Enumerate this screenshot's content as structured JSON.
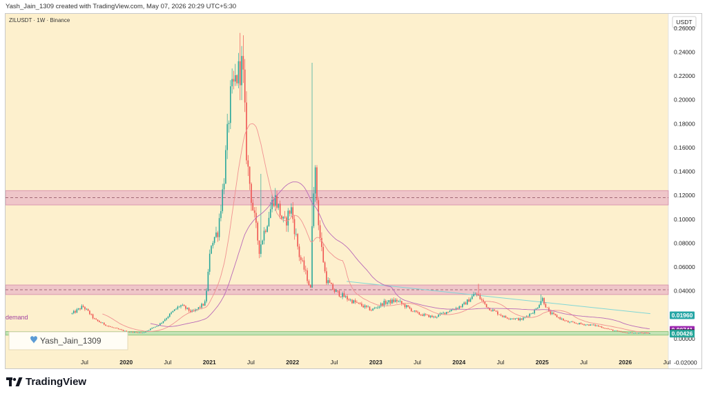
{
  "header": {
    "author_line": "Yash_Jain_1309 created with TradingView.com, May 07, 2026 20:29 UTC+5:30"
  },
  "chart": {
    "symbol_line": "ZILUSDT · 1W · Binance",
    "currency_badge": "USDT",
    "watermark": "Yash_Jain_1309",
    "watermark_icon": "heart-icon",
    "zone_label": "demand",
    "colors": {
      "background": "#fdf0cd",
      "up": "#26a69a",
      "down": "#ef5350",
      "resistance_zone": "#e8b3c8",
      "demand_zone": "#b9e0b0",
      "ma_fast": "#f09090",
      "ma_slow": "#b868b8",
      "trendline": "#7fd6d6"
    }
  },
  "branding": {
    "logo_text": "TradingView",
    "logo_icon": "tradingview-logo-icon"
  },
  "chart_data": {
    "type": "candlestick",
    "title": "ZILUSDT · 1W · Binance",
    "xlabel": "",
    "ylabel": "",
    "y_unit": "USDT",
    "ylim": [
      -0.026,
      0.272
    ],
    "xlim": [
      2018.55,
      2026.45
    ],
    "y_ticks": [
      0.26,
      0.24,
      0.22,
      0.2,
      0.18,
      0.16,
      0.14,
      0.12,
      0.1,
      0.08,
      0.06,
      0.04,
      0.0,
      -0.02
    ],
    "y_tick_labels": [
      "0.26000",
      "0.24000",
      "0.22000",
      "0.20000",
      "0.18000",
      "0.16000",
      "0.14000",
      "0.12000",
      "0.10000",
      "0.08000",
      "0.06000",
      "0.04000",
      "0.00000",
      "-0.02000"
    ],
    "x_ticks": [
      {
        "label": "Jul",
        "t": 2019.5,
        "bold": false
      },
      {
        "label": "2020",
        "t": 2020.0,
        "bold": true
      },
      {
        "label": "Jul",
        "t": 2020.5,
        "bold": false
      },
      {
        "label": "2021",
        "t": 2021.0,
        "bold": true
      },
      {
        "label": "Jul",
        "t": 2021.5,
        "bold": false
      },
      {
        "label": "2022",
        "t": 2022.0,
        "bold": true
      },
      {
        "label": "Jul",
        "t": 2022.5,
        "bold": false
      },
      {
        "label": "2023",
        "t": 2023.0,
        "bold": true
      },
      {
        "label": "Jul",
        "t": 2023.5,
        "bold": false
      },
      {
        "label": "2024",
        "t": 2024.0,
        "bold": true
      },
      {
        "label": "Jul",
        "t": 2024.5,
        "bold": false
      },
      {
        "label": "2025",
        "t": 2025.0,
        "bold": true
      },
      {
        "label": "Jul",
        "t": 2025.5,
        "bold": false
      },
      {
        "label": "2026",
        "t": 2026.0,
        "bold": true
      },
      {
        "label": "Jul",
        "t": 2026.5,
        "bold": false
      }
    ],
    "zones": [
      {
        "name": "resistance-upper",
        "low": 0.112,
        "high": 0.124,
        "mid": 0.118
      },
      {
        "name": "resistance-lower",
        "low": 0.037,
        "high": 0.045,
        "mid": 0.041
      },
      {
        "name": "demand",
        "low": 0.003,
        "high": 0.006
      }
    ],
    "price_tags": [
      {
        "value": "0.01960",
        "y": 0.0196,
        "color": "#26a6a6"
      },
      {
        "value": "0.00741",
        "y": 0.00741,
        "color": "#9c27b0"
      },
      {
        "value": "0.00468",
        "y": 0.00468,
        "color": "#222222"
      },
      {
        "value": "0.00426",
        "y": 0.00426,
        "color": "#26a69a"
      }
    ],
    "trendline": {
      "t1": 2022.65,
      "y1": 0.048,
      "t2": 2026.3,
      "y2": 0.021
    },
    "anchors": [
      [
        2019.35,
        0.021
      ],
      [
        2019.48,
        0.027
      ],
      [
        2019.55,
        0.022
      ],
      [
        2019.62,
        0.016
      ],
      [
        2019.8,
        0.01
      ],
      [
        2020.0,
        0.006
      ],
      [
        2020.2,
        0.005
      ],
      [
        2020.4,
        0.012
      ],
      [
        2020.55,
        0.022
      ],
      [
        2020.65,
        0.028
      ],
      [
        2020.8,
        0.022
      ],
      [
        2020.95,
        0.03
      ],
      [
        2021.02,
        0.08
      ],
      [
        2021.1,
        0.09
      ],
      [
        2021.17,
        0.13
      ],
      [
        2021.25,
        0.2
      ],
      [
        2021.33,
        0.22
      ],
      [
        2021.4,
        0.23
      ],
      [
        2021.45,
        0.15
      ],
      [
        2021.52,
        0.11
      ],
      [
        2021.6,
        0.075
      ],
      [
        2021.7,
        0.1
      ],
      [
        2021.78,
        0.12
      ],
      [
        2021.9,
        0.095
      ],
      [
        2021.98,
        0.11
      ],
      [
        2022.08,
        0.07
      ],
      [
        2022.18,
        0.05
      ],
      [
        2022.22,
        0.04
      ],
      [
        2022.24,
        0.12
      ],
      [
        2022.27,
        0.14
      ],
      [
        2022.32,
        0.09
      ],
      [
        2022.4,
        0.05
      ],
      [
        2022.5,
        0.04
      ],
      [
        2022.7,
        0.032
      ],
      [
        2022.95,
        0.024
      ],
      [
        2023.1,
        0.03
      ],
      [
        2023.25,
        0.032
      ],
      [
        2023.5,
        0.021
      ],
      [
        2023.7,
        0.018
      ],
      [
        2023.9,
        0.024
      ],
      [
        2024.05,
        0.028
      ],
      [
        2024.2,
        0.038
      ],
      [
        2024.35,
        0.026
      ],
      [
        2024.55,
        0.018
      ],
      [
        2024.75,
        0.016
      ],
      [
        2024.92,
        0.024
      ],
      [
        2025.0,
        0.034
      ],
      [
        2025.08,
        0.022
      ],
      [
        2025.3,
        0.014
      ],
      [
        2025.5,
        0.012
      ],
      [
        2025.65,
        0.011
      ],
      [
        2025.85,
        0.007
      ],
      [
        2026.0,
        0.005
      ],
      [
        2026.3,
        0.0045
      ]
    ],
    "spikes": [
      {
        "t": 2021.37,
        "high": 0.256
      },
      {
        "t": 2021.41,
        "high": 0.254
      },
      {
        "t": 2022.23,
        "high": 0.231
      },
      {
        "t": 2021.61,
        "high": 0.138
      },
      {
        "t": 2024.24,
        "high": 0.046
      },
      {
        "t": 2024.98,
        "high": 0.037
      }
    ]
  }
}
